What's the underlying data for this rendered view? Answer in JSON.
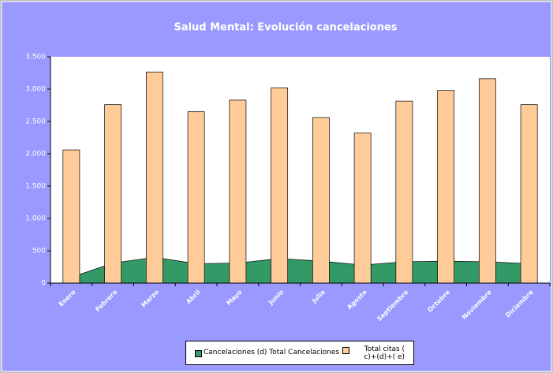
{
  "chart_data": {
    "type": "bar-area",
    "title": "Salud Mental: Evolución cancelaciones",
    "categories": [
      "Enero",
      "Febrero",
      "Marzo",
      "Abril",
      "Mayo",
      "Junio",
      "Julio",
      "Agosto",
      "Septiembre",
      "Octubre",
      "Noviembre",
      "Diciembre"
    ],
    "series": [
      {
        "name": "Cancelaciones (d) Total Cancelaciones",
        "type": "area",
        "color": "#339966",
        "values": [
          90,
          310,
          400,
          300,
          310,
          380,
          340,
          280,
          330,
          340,
          330,
          300
        ]
      },
      {
        "name": "Total citas ( c)+(d)+( e)",
        "type": "bar",
        "color": "#ffcc99",
        "values": [
          2060,
          2760,
          3265,
          2650,
          2830,
          3020,
          2560,
          2320,
          2815,
          2980,
          3160,
          2760
        ]
      }
    ],
    "ylim": [
      0,
      3500
    ],
    "yticks": [
      0,
      500,
      {
        "value": 1000,
        "label": "1.000"
      },
      {
        "value": 1500,
        "label": "1.500"
      },
      {
        "value": 2000,
        "label": "2.000"
      },
      {
        "value": 2500,
        "label": "2.500"
      },
      {
        "value": 3000,
        "label": "3.000"
      },
      {
        "value": 3500,
        "label": "3.500"
      }
    ],
    "legend": "bottom"
  }
}
